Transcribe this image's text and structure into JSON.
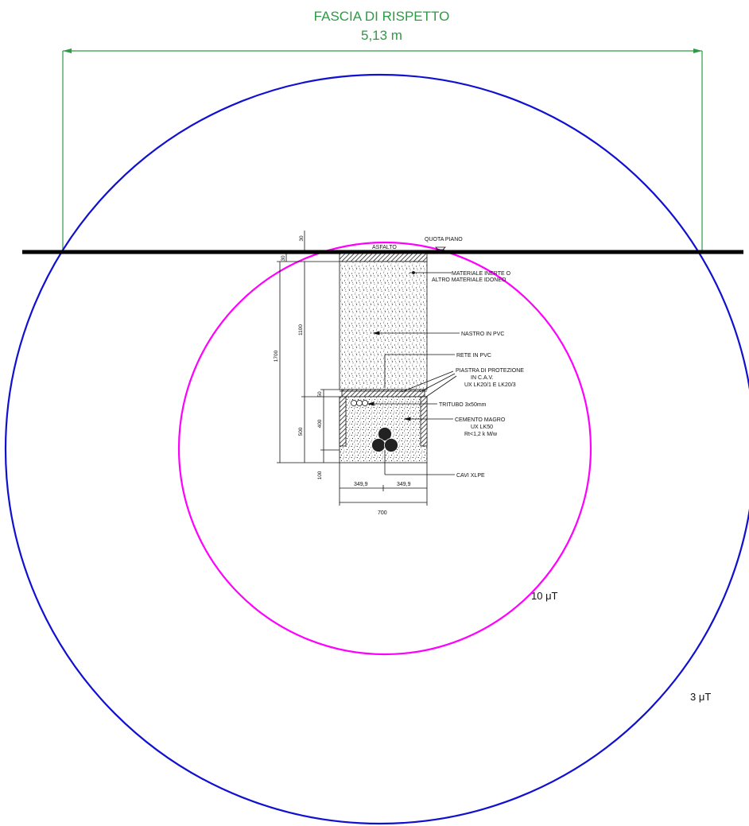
{
  "title": {
    "line1": "FASCIA DI RISPETTO",
    "line2": "5,13 m"
  },
  "rings": {
    "inner_label": "10 μT",
    "outer_label": "3 μT",
    "inner_color": "#ff00ff",
    "outer_color": "#1010d0"
  },
  "colors": {
    "dimension": "#2e9a45",
    "ground": "#000000"
  },
  "section": {
    "surface_label": "ASFALTO",
    "level_label": "QUOTA PIANO",
    "callouts": {
      "fill_material_line1": "MATERIALE INERTE O",
      "fill_material_line2": "ALTRO MATERIALE IDONEO",
      "tape": "NASTRO IN PVC",
      "mesh": "RETE IN PVC",
      "plate_line1": "PIASTRA DI PROTEZIONE",
      "plate_line2": "IN C.A.V.",
      "plate_line3": "UX LK20/1 E LK20/3",
      "conduit": "TRITUBO 3x50mm",
      "concrete_line1": "CEMENTO MAGRO",
      "concrete_line2": "UX LK50",
      "concrete_line3": "Rt<1,2 k M/w",
      "cables": "CAVI XLPE"
    },
    "dimensions": {
      "d30_top": "30",
      "d30_low": "30",
      "d1700": "1700",
      "d1100": "1100",
      "d50": "50",
      "d400": "400",
      "d500": "500",
      "d100": "100",
      "half_left": "349,9",
      "half_right": "349,9",
      "width": "700"
    }
  }
}
